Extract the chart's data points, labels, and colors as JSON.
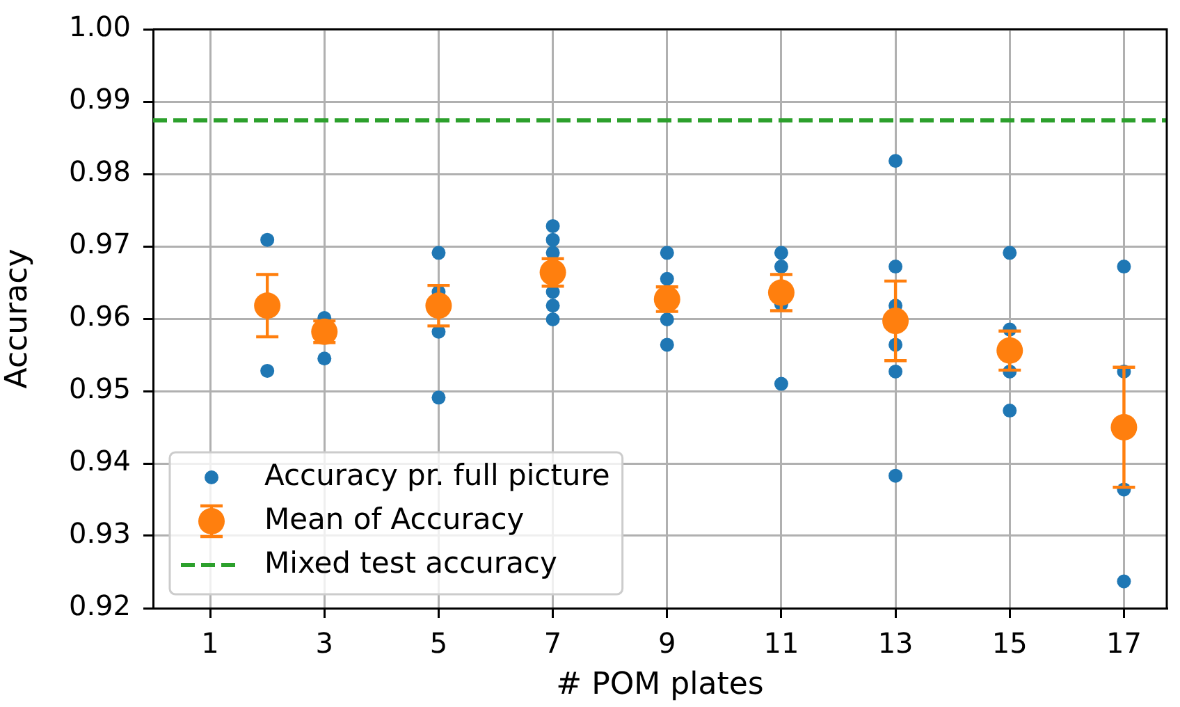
{
  "chart_data": {
    "type": "scatter",
    "xlabel": "# POM plates",
    "ylabel": "Accuracy",
    "xlim": [
      0,
      17.75
    ],
    "xticks": [
      1,
      3,
      5,
      7,
      9,
      11,
      13,
      15,
      17
    ],
    "ylim": [
      0.92,
      1
    ],
    "yticks": [
      0.92,
      0.93,
      0.94,
      0.95,
      0.96,
      0.97,
      0.98,
      0.99,
      {
        "value": 1,
        "label": "1.00"
      }
    ],
    "grid": true,
    "legend": "bottom left",
    "marker": "circle",
    "series": [
      {
        "name": "Accuracy pr. full picture",
        "color": "#1f77b4",
        "x": [
          2,
          2,
          3,
          3,
          5,
          5,
          5,
          5,
          7,
          7,
          7,
          7,
          7,
          7,
          9,
          9,
          9,
          9,
          11,
          11,
          11,
          11,
          13,
          13,
          13,
          13,
          13,
          13,
          15,
          15,
          15,
          15,
          17,
          17,
          17,
          17
        ],
        "values": [
          0.9709,
          0.9528,
          0.9601,
          0.9545,
          0.9691,
          0.9637,
          0.9582,
          0.9491,
          0.9728,
          0.9709,
          0.9691,
          0.9637,
          0.9618,
          0.9599,
          0.9691,
          0.9655,
          0.9599,
          0.9564,
          0.9691,
          0.9672,
          0.962,
          0.951,
          0.9818,
          0.9672,
          0.9618,
          0.9564,
          0.9527,
          0.9383,
          0.9691,
          0.9585,
          0.9527,
          0.9473,
          0.9672,
          0.9527,
          0.9364,
          0.9237
        ]
      },
      {
        "name": "Mean of Accuracy",
        "color": "#ff7f0e",
        "x": [
          2,
          3,
          5,
          7,
          9,
          11,
          13,
          15,
          17
        ],
        "values": [
          0.9618,
          0.9582,
          0.9618,
          0.9664,
          0.9627,
          0.9636,
          0.9597,
          0.9556,
          0.945
        ],
        "errors": [
          0.0043,
          0.0015,
          0.0028,
          0.0019,
          0.0017,
          0.0025,
          0.0055,
          0.0027,
          0.0083
        ]
      }
    ],
    "ref_lines": [
      {
        "axis": "y",
        "value": 0.9874,
        "label": "Mixed test accuracy",
        "color": "#2ca02c",
        "line_style": "dashed"
      }
    ]
  }
}
